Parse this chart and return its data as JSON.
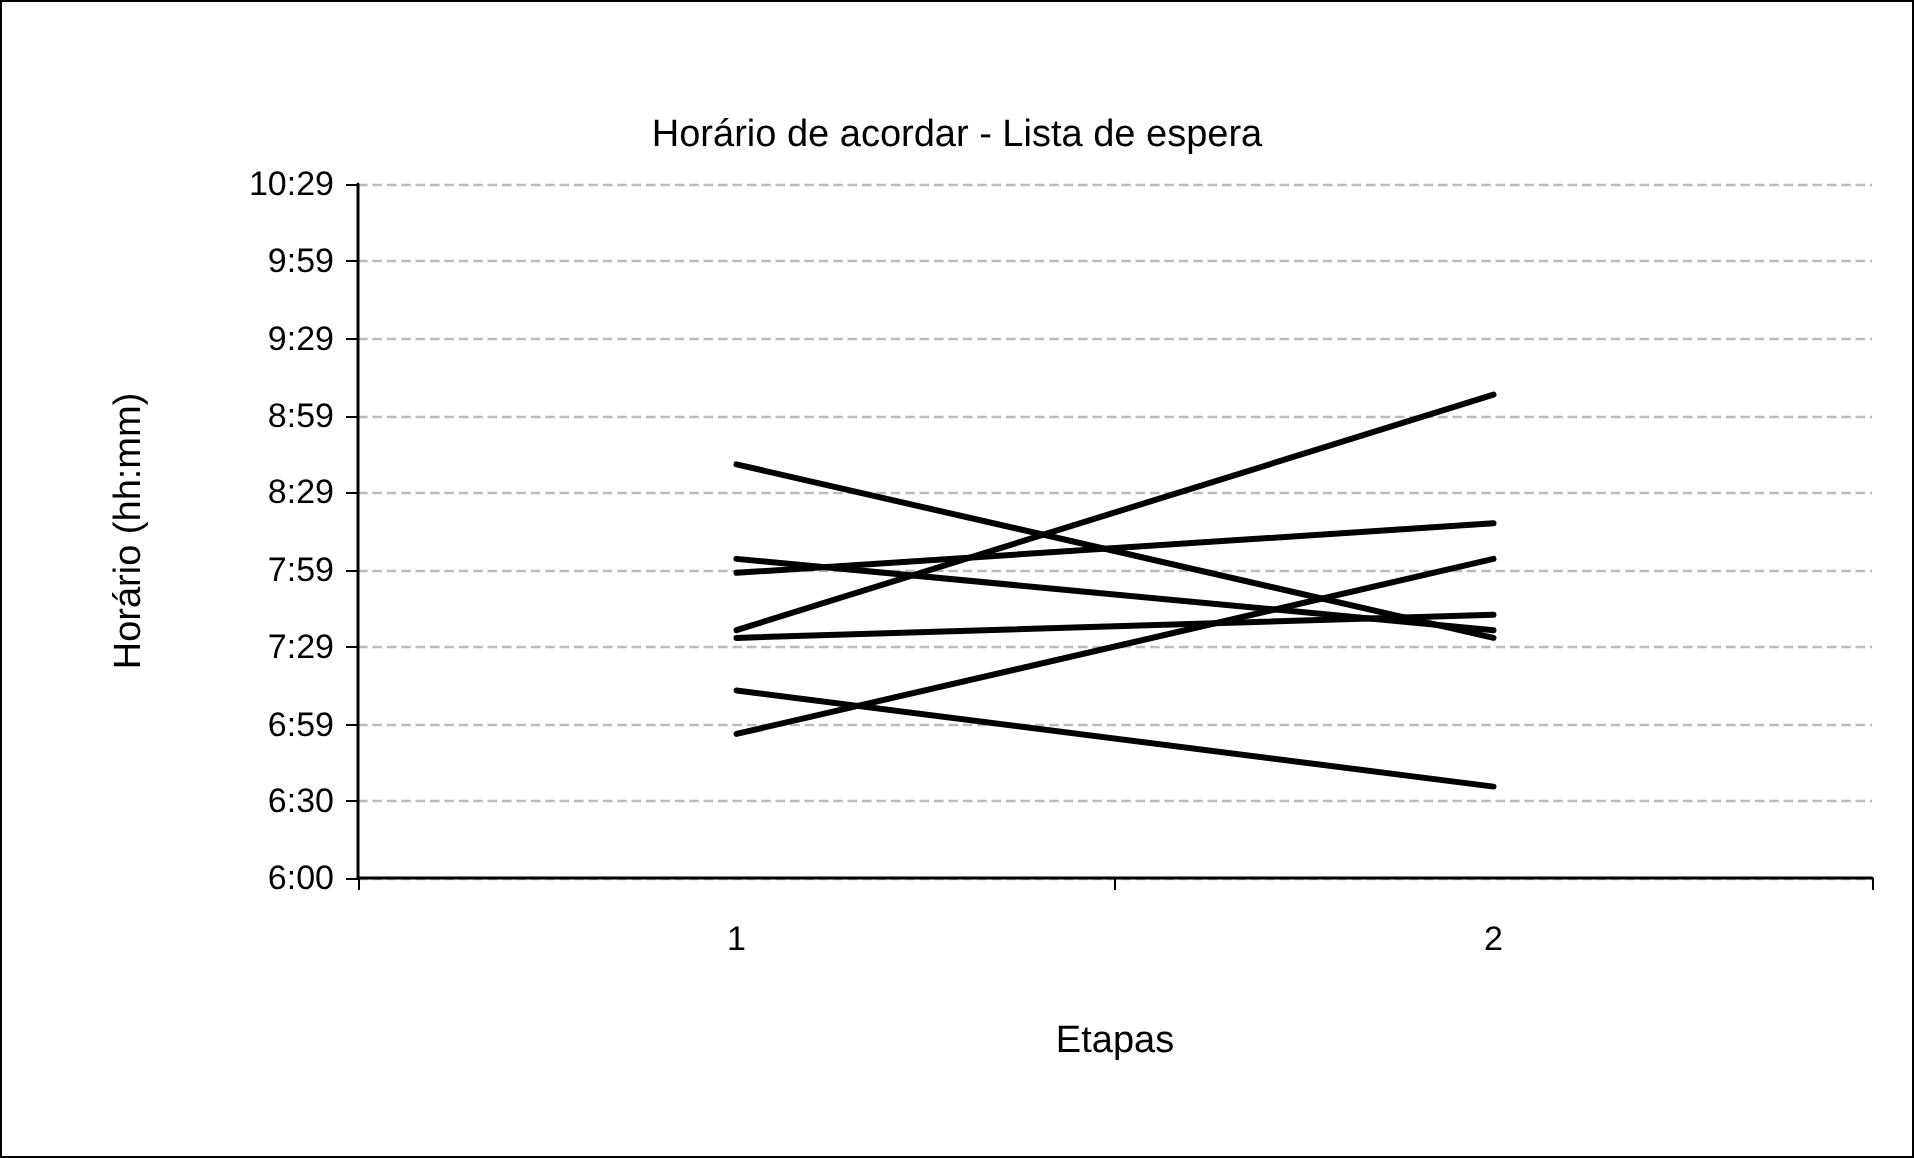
{
  "chart_data": {
    "type": "line",
    "title": "Horário de acordar - Lista de espera",
    "xlabel": "Etapas",
    "ylabel": "Horário (hh:mm)",
    "categories": [
      "1",
      "2"
    ],
    "series": [
      {
        "color": "#000000",
        "values": [
          8.67,
          7.55
        ]
      },
      {
        "color": "#000000",
        "values": [
          8.06,
          7.6
        ]
      },
      {
        "color": "#000000",
        "values": [
          7.97,
          8.29
        ]
      },
      {
        "color": "#000000",
        "values": [
          7.6,
          9.12
        ]
      },
      {
        "color": "#000000",
        "values": [
          7.55,
          7.7
        ]
      },
      {
        "color": "#000000",
        "values": [
          7.21,
          6.59
        ]
      },
      {
        "color": "#000000",
        "values": [
          6.93,
          8.06
        ]
      }
    ],
    "ylim": [
      6,
      10.48
    ],
    "yticks": [
      {
        "value": 6,
        "label": "6:00"
      },
      {
        "value": 6.5,
        "label": "6:30"
      },
      {
        "value": 6.99,
        "label": "6:59"
      },
      {
        "value": 7.49,
        "label": "7:29"
      },
      {
        "value": 7.99,
        "label": "7:59"
      },
      {
        "value": 8.49,
        "label": "8:29"
      },
      {
        "value": 8.98,
        "label": "8:59"
      },
      {
        "value": 9.48,
        "label": "9:29"
      },
      {
        "value": 9.98,
        "label": "9:59"
      },
      {
        "value": 10.48,
        "label": "10:29"
      }
    ],
    "grid": "y",
    "marker": "none",
    "line_style": "solid"
  }
}
